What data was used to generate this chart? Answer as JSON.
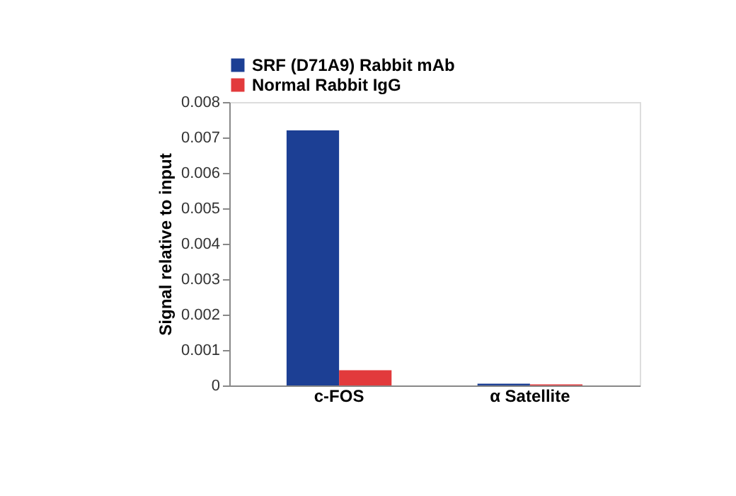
{
  "chart_data": {
    "type": "bar",
    "ylabel": "Signal relative to input",
    "categories": [
      "c-FOS",
      "α Satellite"
    ],
    "series": [
      {
        "name": "SRF (D71A9) Rabbit mAb",
        "color": "#1c3f94",
        "values": [
          0.0072,
          5e-05
        ]
      },
      {
        "name": "Normal Rabbit IgG",
        "color": "#e23a3c",
        "values": [
          0.00043,
          3e-05
        ]
      }
    ],
    "ylim": [
      0,
      0.008
    ],
    "yticks": [
      0,
      0.001,
      0.002,
      0.003,
      0.004,
      0.005,
      0.006,
      0.007,
      0.008
    ],
    "grid": false,
    "legend": "top left"
  }
}
